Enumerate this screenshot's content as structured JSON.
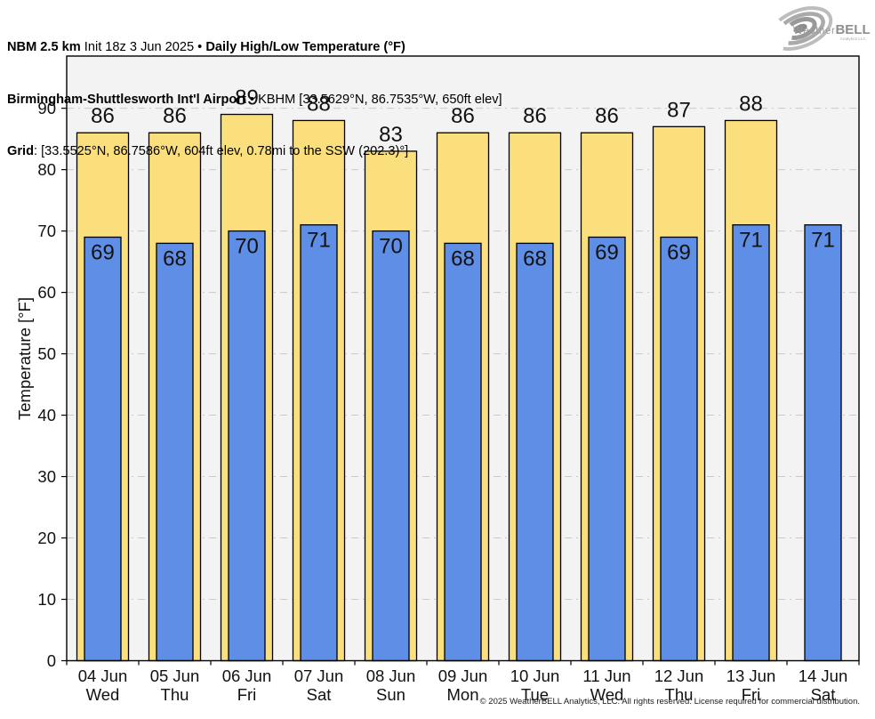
{
  "header": {
    "line1_bold1": "NBM 2.5 km",
    "line1_normal": " Init 18z 3 Jun 2025 • ",
    "line1_bold2": "Daily High/Low Temperature (°F)",
    "line2_bold": "Birmingham-Shuttlesworth Int'l Airport",
    "line2_normal": " • KBHM [33.5629°N, 86.7535°W, 650ft elev]",
    "line3_bold": "Grid",
    "line3_normal": ": [33.5525°N, 86.7586°W, 604ft elev, 0.78mi to the SSW (202.3)°]"
  },
  "logo": {
    "weather": "Weather",
    "bell": "BELL",
    "sub": "Analytics LLC"
  },
  "chart_data": {
    "type": "bar",
    "title": "NBM 2.5 km Init 18z 3 Jun 2025 • Daily High/Low Temperature (°F)",
    "subtitle": "Birmingham-Shuttlesworth Int'l Airport • KBHM [33.5629°N, 86.7535°W, 650ft elev]",
    "grid_point": "Grid: [33.5525°N, 86.7586°W, 604ft elev, 0.78mi to the SSW (202.3)°]",
    "xlabel": "",
    "ylabel": "Temperature [°F]",
    "ylim": [
      0,
      98.5
    ],
    "yticks": [
      0,
      10,
      20,
      30,
      40,
      50,
      60,
      70,
      80,
      90
    ],
    "grid": true,
    "legend": "none",
    "plot_bg": "#f3f3f3",
    "grid_color": "#c9c9c9",
    "axis_color": "#000000",
    "label_color": "#111111",
    "categories": [
      "04 Jun",
      "05 Jun",
      "06 Jun",
      "07 Jun",
      "08 Jun",
      "09 Jun",
      "10 Jun",
      "11 Jun",
      "12 Jun",
      "13 Jun",
      "14 Jun"
    ],
    "days": [
      "Wed",
      "Thu",
      "Fri",
      "Sat",
      "Sun",
      "Mon",
      "Tue",
      "Wed",
      "Thu",
      "Fri",
      "Sat"
    ],
    "series": [
      {
        "name": "Daily High",
        "color": "#fbdf7c",
        "border": "#000000",
        "values": [
          86,
          86,
          89,
          88,
          83,
          86,
          86,
          86,
          87,
          88,
          null
        ]
      },
      {
        "name": "Daily Low",
        "color": "#5f8ee6",
        "border": "#000000",
        "values": [
          69,
          68,
          70,
          71,
          70,
          68,
          68,
          69,
          69,
          71,
          71
        ]
      }
    ]
  },
  "footer": {
    "copyright": "© 2025 WeatherBELL Analytics, LLC. All rights reserved. License required for commercial distribution."
  }
}
